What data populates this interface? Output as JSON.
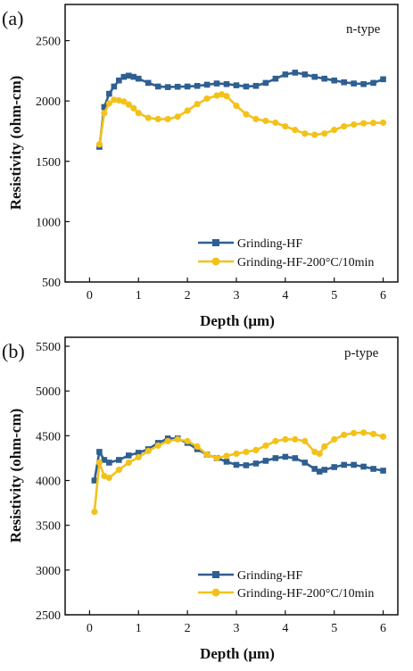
{
  "colors": {
    "series1": "#2f5f91",
    "series2": "#f3c21a",
    "axis": "#111111"
  },
  "chart_data": [
    {
      "type": "line",
      "panel_label": "(a)",
      "annotation": "n-type",
      "xlabel": "Depth (μm)",
      "ylabel": "Resistivity (ohm-cm)",
      "xlim": [
        -0.5,
        6.3
      ],
      "ylim": [
        500,
        2800
      ],
      "xticks": [
        0,
        1,
        2,
        3,
        4,
        5,
        6
      ],
      "yticks": [
        500,
        1000,
        1500,
        2000,
        2500
      ],
      "legend_position": "bottom-right",
      "series": [
        {
          "name": "Grinding-HF",
          "marker": "square",
          "points": [
            [
              0.2,
              1620
            ],
            [
              0.3,
              1950
            ],
            [
              0.4,
              2060
            ],
            [
              0.5,
              2120
            ],
            [
              0.6,
              2170
            ],
            [
              0.7,
              2200
            ],
            [
              0.8,
              2210
            ],
            [
              0.9,
              2200
            ],
            [
              1.0,
              2185
            ],
            [
              1.2,
              2150
            ],
            [
              1.4,
              2120
            ],
            [
              1.6,
              2115
            ],
            [
              1.8,
              2118
            ],
            [
              2.0,
              2120
            ],
            [
              2.2,
              2125
            ],
            [
              2.4,
              2135
            ],
            [
              2.6,
              2145
            ],
            [
              2.8,
              2140
            ],
            [
              3.0,
              2130
            ],
            [
              3.2,
              2120
            ],
            [
              3.4,
              2125
            ],
            [
              3.6,
              2150
            ],
            [
              3.8,
              2185
            ],
            [
              4.0,
              2220
            ],
            [
              4.2,
              2235
            ],
            [
              4.4,
              2220
            ],
            [
              4.6,
              2200
            ],
            [
              4.8,
              2185
            ],
            [
              5.0,
              2170
            ],
            [
              5.2,
              2155
            ],
            [
              5.4,
              2145
            ],
            [
              5.6,
              2140
            ],
            [
              5.8,
              2150
            ],
            [
              6.0,
              2180
            ]
          ]
        },
        {
          "name": "Grinding-HF-200°C/10min",
          "marker": "circle",
          "points": [
            [
              0.2,
              1640
            ],
            [
              0.3,
              1900
            ],
            [
              0.4,
              1980
            ],
            [
              0.5,
              2010
            ],
            [
              0.6,
              2005
            ],
            [
              0.7,
              1995
            ],
            [
              0.8,
              1970
            ],
            [
              0.9,
              1940
            ],
            [
              1.0,
              1900
            ],
            [
              1.2,
              1860
            ],
            [
              1.4,
              1850
            ],
            [
              1.6,
              1850
            ],
            [
              1.8,
              1870
            ],
            [
              2.0,
              1920
            ],
            [
              2.2,
              1975
            ],
            [
              2.4,
              2020
            ],
            [
              2.6,
              2045
            ],
            [
              2.7,
              2055
            ],
            [
              2.8,
              2040
            ],
            [
              3.0,
              1960
            ],
            [
              3.2,
              1890
            ],
            [
              3.4,
              1850
            ],
            [
              3.6,
              1835
            ],
            [
              3.8,
              1820
            ],
            [
              4.0,
              1790
            ],
            [
              4.2,
              1760
            ],
            [
              4.4,
              1730
            ],
            [
              4.6,
              1720
            ],
            [
              4.8,
              1730
            ],
            [
              5.0,
              1760
            ],
            [
              5.2,
              1790
            ],
            [
              5.4,
              1805
            ],
            [
              5.6,
              1815
            ],
            [
              5.8,
              1818
            ],
            [
              6.0,
              1820
            ]
          ]
        }
      ]
    },
    {
      "type": "line",
      "panel_label": "(b)",
      "annotation": "p-type",
      "xlabel": "Depth (μm)",
      "ylabel": "Resistivity (ohm-cm)",
      "xlim": [
        -0.5,
        6.3
      ],
      "ylim": [
        2500,
        5600
      ],
      "xticks": [
        0,
        1,
        2,
        3,
        4,
        5,
        6
      ],
      "yticks": [
        2500,
        3000,
        3500,
        4000,
        4500,
        5000,
        5500
      ],
      "legend_position": "bottom-right",
      "series": [
        {
          "name": "Grinding-HF",
          "marker": "square",
          "points": [
            [
              0.1,
              4000
            ],
            [
              0.2,
              4320
            ],
            [
              0.3,
              4230
            ],
            [
              0.4,
              4200
            ],
            [
              0.6,
              4230
            ],
            [
              0.8,
              4280
            ],
            [
              1.0,
              4310
            ],
            [
              1.2,
              4350
            ],
            [
              1.4,
              4420
            ],
            [
              1.6,
              4470
            ],
            [
              1.8,
              4470
            ],
            [
              2.0,
              4420
            ],
            [
              2.2,
              4350
            ],
            [
              2.4,
              4290
            ],
            [
              2.6,
              4250
            ],
            [
              2.8,
              4210
            ],
            [
              3.0,
              4175
            ],
            [
              3.2,
              4170
            ],
            [
              3.4,
              4190
            ],
            [
              3.6,
              4220
            ],
            [
              3.8,
              4250
            ],
            [
              4.0,
              4265
            ],
            [
              4.2,
              4250
            ],
            [
              4.4,
              4200
            ],
            [
              4.6,
              4130
            ],
            [
              4.7,
              4100
            ],
            [
              4.8,
              4120
            ],
            [
              5.0,
              4150
            ],
            [
              5.2,
              4175
            ],
            [
              5.4,
              4175
            ],
            [
              5.6,
              4155
            ],
            [
              5.8,
              4130
            ],
            [
              6.0,
              4110
            ]
          ]
        },
        {
          "name": "Grinding-HF-200°C/10min",
          "marker": "circle",
          "points": [
            [
              0.1,
              3650
            ],
            [
              0.2,
              4200
            ],
            [
              0.3,
              4050
            ],
            [
              0.4,
              4030
            ],
            [
              0.6,
              4120
            ],
            [
              0.8,
              4200
            ],
            [
              1.0,
              4260
            ],
            [
              1.2,
              4330
            ],
            [
              1.4,
              4390
            ],
            [
              1.6,
              4440
            ],
            [
              1.8,
              4460
            ],
            [
              2.0,
              4440
            ],
            [
              2.2,
              4380
            ],
            [
              2.4,
              4290
            ],
            [
              2.6,
              4250
            ],
            [
              2.8,
              4275
            ],
            [
              3.0,
              4300
            ],
            [
              3.2,
              4320
            ],
            [
              3.4,
              4340
            ],
            [
              3.6,
              4390
            ],
            [
              3.8,
              4440
            ],
            [
              4.0,
              4460
            ],
            [
              4.2,
              4460
            ],
            [
              4.4,
              4440
            ],
            [
              4.6,
              4320
            ],
            [
              4.7,
              4300
            ],
            [
              4.8,
              4380
            ],
            [
              5.0,
              4460
            ],
            [
              5.2,
              4510
            ],
            [
              5.4,
              4530
            ],
            [
              5.6,
              4535
            ],
            [
              5.8,
              4520
            ],
            [
              6.0,
              4490
            ]
          ]
        }
      ]
    }
  ]
}
